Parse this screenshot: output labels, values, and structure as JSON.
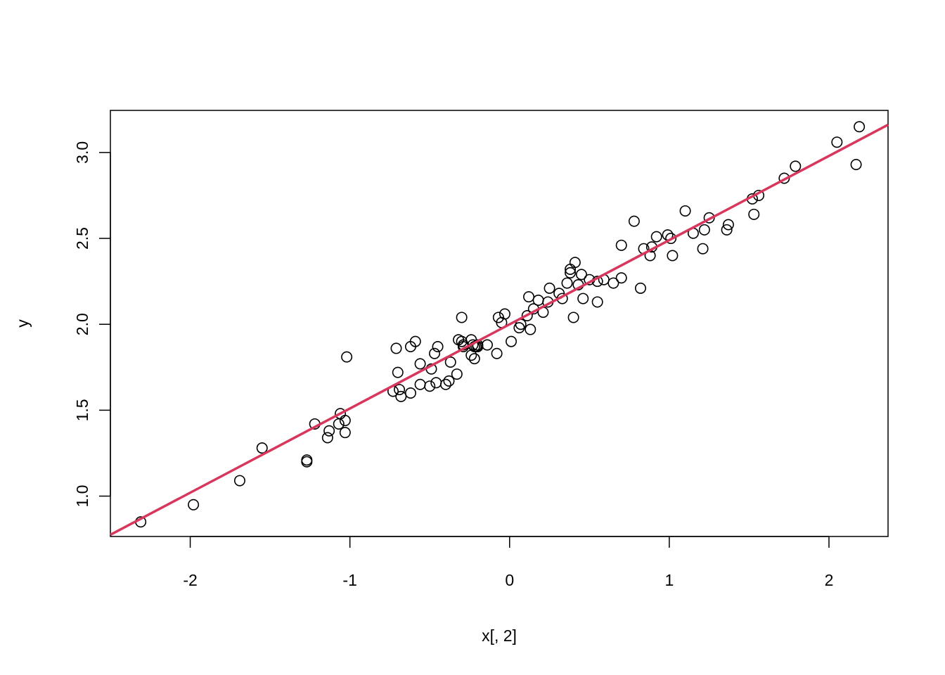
{
  "chart_data": {
    "type": "scatter",
    "title": "",
    "xlabel": "x[, 2]",
    "ylabel": "y",
    "xlim": [
      -2.5,
      2.37
    ],
    "ylim": [
      0.765,
      3.245
    ],
    "xticks": [
      -2,
      -1,
      0,
      1,
      2
    ],
    "xtick_labels": [
      "-2",
      "-1",
      "0",
      "1",
      "2"
    ],
    "yticks": [
      1.0,
      1.5,
      2.0,
      2.5,
      3.0
    ],
    "ytick_labels": [
      "1.0",
      "1.5",
      "2.0",
      "2.5",
      "3.0"
    ],
    "grid": false,
    "point_style": "open-circle",
    "point_color": "#000000",
    "series": [
      {
        "x": [
          -2.31,
          -1.98,
          -1.69,
          -1.55,
          -1.27,
          -1.27,
          -1.22,
          -1.14,
          -1.13,
          -1.07,
          -1.06,
          -1.03,
          -1.03,
          -1.02,
          -0.73,
          -0.71,
          -0.7,
          -0.69,
          -0.68,
          -0.62,
          -0.62,
          -0.59,
          -0.56,
          -0.56,
          -0.5,
          -0.49,
          -0.47,
          -0.46,
          -0.45,
          -0.4,
          -0.38,
          -0.37,
          -0.33,
          -0.32,
          -0.3,
          -0.3,
          -0.29,
          -0.29,
          -0.24,
          -0.24,
          -0.23,
          -0.22,
          -0.22,
          -0.21,
          -0.2,
          -0.2,
          -0.14,
          -0.08,
          -0.07,
          -0.05,
          -0.03,
          0.01,
          0.06,
          0.07,
          0.11,
          0.12,
          0.13,
          0.15,
          0.18,
          0.21,
          0.24,
          0.25,
          0.31,
          0.33,
          0.36,
          0.38,
          0.38,
          0.4,
          0.41,
          0.43,
          0.45,
          0.46,
          0.5,
          0.55,
          0.55,
          0.59,
          0.65,
          0.7,
          0.7,
          0.78,
          0.82,
          0.84,
          0.88,
          0.89,
          0.92,
          0.99,
          1.01,
          1.02,
          1.1,
          1.15,
          1.21,
          1.22,
          1.25,
          1.36,
          1.37,
          1.52,
          1.53,
          1.56,
          1.72,
          1.79,
          2.05,
          2.17,
          2.19
        ],
        "y": [
          0.85,
          0.95,
          1.09,
          1.28,
          1.2,
          1.21,
          1.42,
          1.34,
          1.38,
          1.42,
          1.48,
          1.37,
          1.44,
          1.81,
          1.61,
          1.86,
          1.72,
          1.62,
          1.58,
          1.87,
          1.6,
          1.9,
          1.77,
          1.65,
          1.64,
          1.74,
          1.83,
          1.66,
          1.87,
          1.65,
          1.67,
          1.78,
          1.71,
          1.91,
          2.04,
          1.9,
          1.87,
          1.88,
          1.82,
          1.91,
          1.88,
          1.8,
          1.87,
          1.87,
          1.88,
          1.87,
          1.88,
          1.83,
          2.04,
          2.01,
          2.06,
          1.9,
          1.98,
          2.0,
          2.05,
          2.16,
          1.97,
          2.09,
          2.14,
          2.07,
          2.13,
          2.21,
          2.18,
          2.15,
          2.24,
          2.3,
          2.32,
          2.04,
          2.36,
          2.23,
          2.29,
          2.15,
          2.26,
          2.25,
          2.13,
          2.26,
          2.24,
          2.46,
          2.27,
          2.6,
          2.21,
          2.44,
          2.4,
          2.45,
          2.51,
          2.52,
          2.5,
          2.4,
          2.66,
          2.53,
          2.44,
          2.55,
          2.62,
          2.55,
          2.58,
          2.73,
          2.64,
          2.75,
          2.85,
          2.92,
          3.06,
          2.93,
          3.15
        ]
      }
    ],
    "fit_line": {
      "color": "#d8365a",
      "intercept": 2.0,
      "slope": 0.49
    }
  }
}
